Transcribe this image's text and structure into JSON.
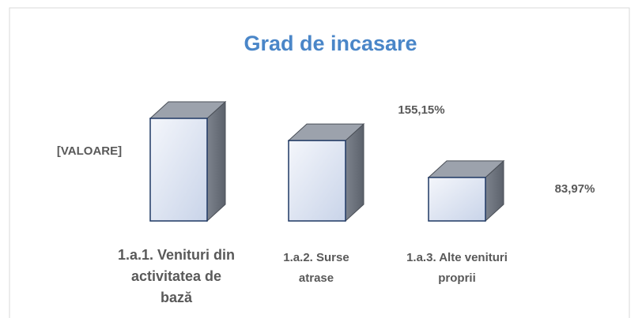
{
  "chart_data": {
    "type": "bar",
    "title": "Grad de incasare",
    "categories": [
      "1.a.1. Venituri din activitatea de bază",
      "1.a.2. Surse atrase",
      "1.a.3. Alte venituri proprii"
    ],
    "values": [
      198,
      155.15,
      83.97
    ],
    "value_labels": [
      "[VALOARE]",
      "155,15%",
      "83,97%"
    ],
    "color": "#dfe6f3"
  }
}
